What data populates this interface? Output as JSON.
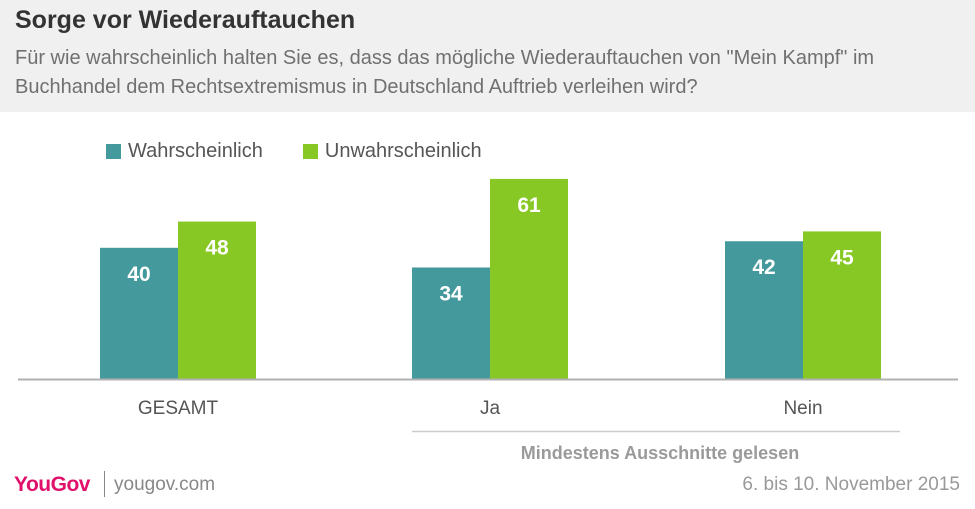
{
  "title": "Sorge vor Wiederauftauchen",
  "subtitle": "Für wie wahrscheinlich halten Sie es, dass das mögliche Wiederauftauchen von \"Mein Kampf\" im Buchhandel dem Rechtsextremismus in Deutschland Auftrieb verleihen wird?",
  "footer": {
    "logo": "YouGov",
    "site": "yougov.com",
    "date": "6. bis 10. November 2015"
  },
  "colors": {
    "series_1": "#44999c",
    "series_2": "#88c825"
  },
  "chart_data": {
    "type": "bar",
    "categories": [
      "GESAMT",
      "Ja",
      "Nein"
    ],
    "group_label": "Mindestens Ausschnitte gelesen",
    "series": [
      {
        "name": "Wahrscheinlich",
        "values": [
          40,
          34,
          42
        ]
      },
      {
        "name": "Unwahrscheinlich",
        "values": [
          48,
          61,
          45
        ]
      }
    ],
    "ylim": [
      0,
      65
    ],
    "grid": false,
    "legend": "top-left"
  }
}
